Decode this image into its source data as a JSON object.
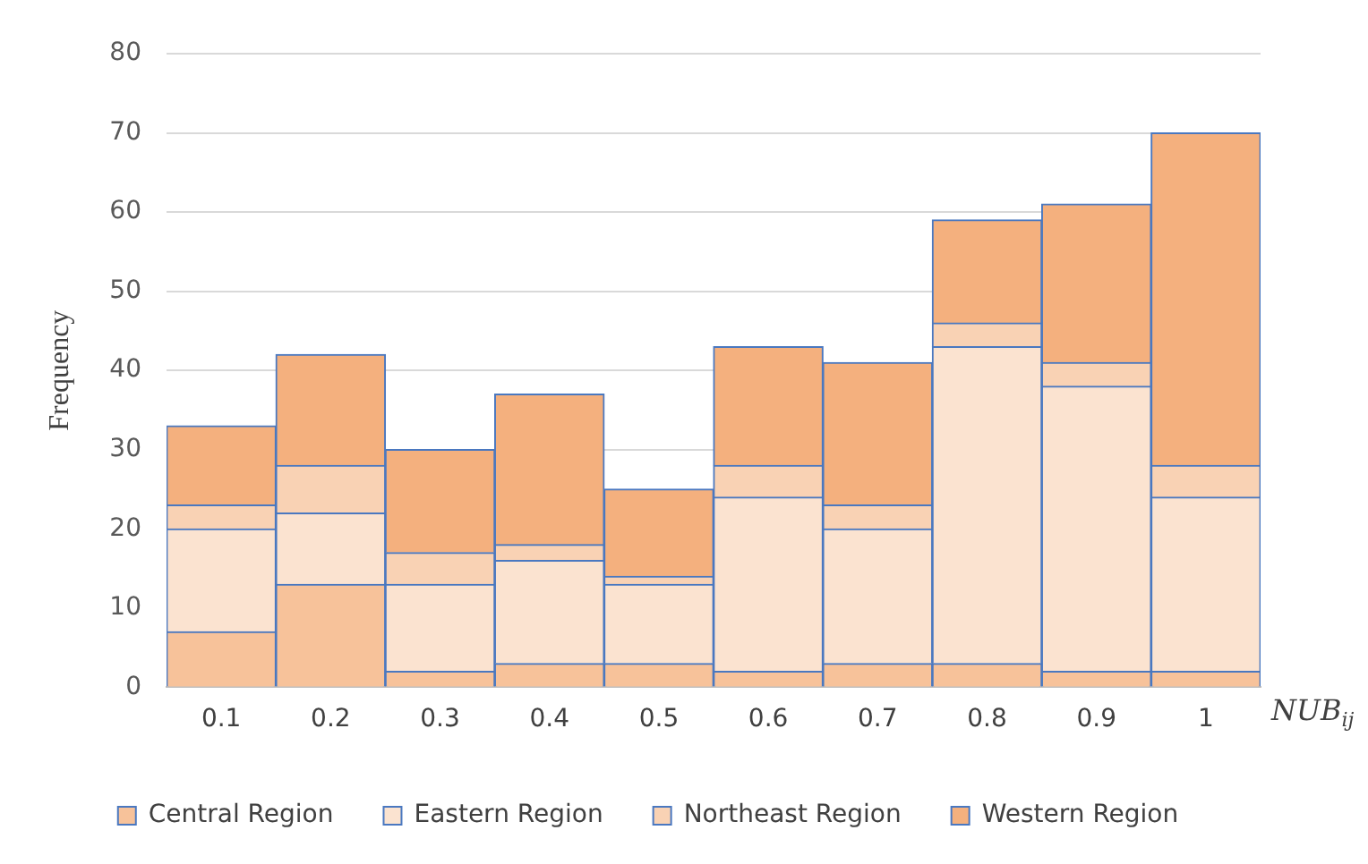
{
  "chart_data": {
    "type": "bar",
    "stacked": true,
    "ylabel": "Frequency",
    "xlabel": "NUB$_{ij}$",
    "categories": [
      "0.1",
      "0.2",
      "0.3",
      "0.4",
      "0.5",
      "0.6",
      "0.7",
      "0.8",
      "0.9",
      "1"
    ],
    "series": [
      {
        "name": "Central Region",
        "color": "#f7c29a",
        "values": [
          7,
          13,
          2,
          3,
          3,
          2,
          3,
          3,
          2,
          2
        ]
      },
      {
        "name": "Eastern Region",
        "color": "#fbe3d0",
        "values": [
          13,
          9,
          11,
          13,
          10,
          22,
          17,
          40,
          36,
          22
        ]
      },
      {
        "name": "Northeast Region",
        "color": "#f9d2b4",
        "values": [
          3,
          6,
          4,
          2,
          1,
          4,
          3,
          3,
          3,
          4
        ]
      },
      {
        "name": "Western Region",
        "color": "#f4b07e",
        "values": [
          10,
          14,
          13,
          19,
          11,
          15,
          18,
          13,
          20,
          42
        ]
      }
    ],
    "ylim": [
      0,
      80
    ],
    "yticks": [
      0,
      10,
      20,
      30,
      40,
      50,
      60,
      70,
      80
    ],
    "grid": "y",
    "legend": "bottom"
  }
}
